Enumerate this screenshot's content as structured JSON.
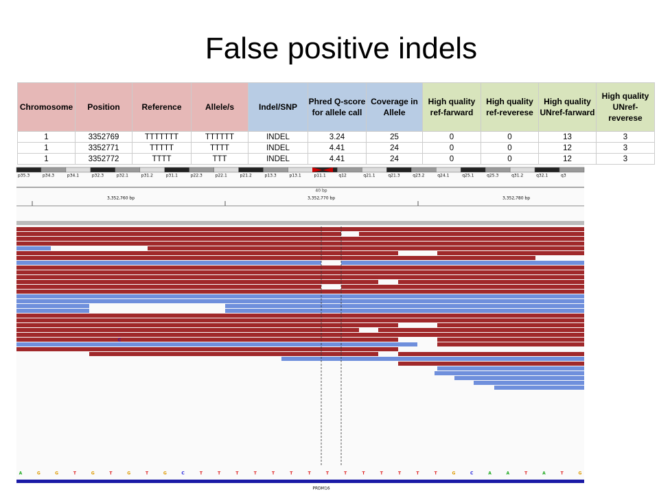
{
  "title": "False positive indels",
  "table": {
    "headers": [
      "Chromosome",
      "Position",
      "Reference",
      "Allele/s",
      "Indel/SNP",
      "Phred Q-score for allele call",
      "Coverage in Allele",
      "High quality ref-farward",
      "High quality ref-reverese",
      "High quality UNref-farward",
      "High quality UNref-reverese"
    ],
    "rows": [
      [
        1,
        3352769,
        "TTTTTTT",
        "TTTTTT",
        "INDEL",
        3.24,
        25,
        0,
        0,
        13,
        3
      ],
      [
        1,
        3352771,
        "TTTTT",
        "TTTT",
        "INDEL",
        4.41,
        24,
        0,
        0,
        12,
        3
      ],
      [
        1,
        3352772,
        "TTTT",
        "TTT",
        "INDEL",
        4.41,
        24,
        0,
        0,
        12,
        3
      ]
    ]
  },
  "igv": {
    "cytobands": [
      "p35.3",
      "p34.3",
      "p34.1",
      "p32.3",
      "p32.1",
      "p31.2",
      "p31.1",
      "p22.3",
      "p22.1",
      "p21.2",
      "p13.3",
      "p13.1",
      "p11.1",
      "q12",
      "q21.1",
      "q21.3",
      "q23.2",
      "q24.1",
      "q25.1",
      "q25.3",
      "q31.2",
      "q32.1",
      "q3"
    ],
    "span": "40 bp",
    "ruler": [
      "3,352,760 bp",
      "3,352,770 bp",
      "3,352,780 bp"
    ],
    "sequence": [
      "A",
      "G",
      "G",
      "T",
      "G",
      "T",
      "G",
      "T",
      "G",
      "C",
      "T",
      "T",
      "T",
      "T",
      "T",
      "T",
      "T",
      "T",
      "T",
      "T",
      "T",
      "T",
      "T",
      "T",
      "G",
      "C",
      "A",
      "A",
      "T",
      "A",
      "T",
      "G"
    ],
    "gene": "PRDM16",
    "mismatch": "C"
  }
}
